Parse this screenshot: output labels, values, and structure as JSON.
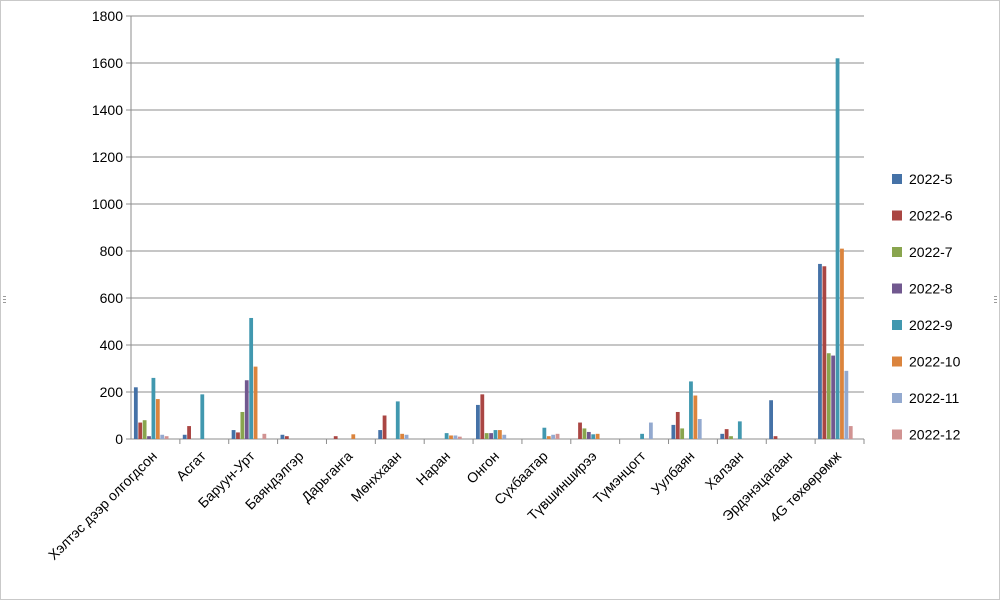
{
  "chart_data": {
    "type": "bar",
    "categories": [
      "Хэлтэс дээр олгогдсон",
      "Асгат",
      "Баруун-Урт",
      "Баяндэлгэр",
      "Дарьганга",
      "Мөнххаан",
      "Наран",
      "Онгон",
      "Сүхбаатар",
      "Түвшинширээ",
      "Түмэнцогт",
      "Уулбаян",
      "Халзан",
      "Эрдэнэцагаан",
      "4G төхөөрөмж"
    ],
    "series": [
      {
        "name": "2022-5",
        "color": "#4572a7",
        "values": [
          220,
          18,
          38,
          18,
          0,
          38,
          0,
          145,
          0,
          0,
          0,
          60,
          22,
          165,
          745
        ]
      },
      {
        "name": "2022-6",
        "color": "#aa4643",
        "values": [
          70,
          55,
          28,
          12,
          12,
          100,
          0,
          190,
          0,
          70,
          0,
          115,
          42,
          12,
          735
        ]
      },
      {
        "name": "2022-7",
        "color": "#89a54e",
        "values": [
          80,
          0,
          115,
          0,
          0,
          0,
          0,
          25,
          0,
          45,
          0,
          45,
          12,
          0,
          365
        ]
      },
      {
        "name": "2022-8",
        "color": "#71588f",
        "values": [
          12,
          0,
          250,
          0,
          0,
          0,
          0,
          25,
          0,
          30,
          0,
          0,
          0,
          0,
          355
        ]
      },
      {
        "name": "2022-9",
        "color": "#4198af",
        "values": [
          260,
          190,
          515,
          0,
          0,
          160,
          25,
          38,
          48,
          20,
          22,
          245,
          75,
          0,
          1620
        ]
      },
      {
        "name": "2022-10",
        "color": "#db843d",
        "values": [
          170,
          0,
          308,
          0,
          20,
          22,
          15,
          38,
          12,
          22,
          0,
          185,
          0,
          0,
          810
        ]
      },
      {
        "name": "2022-11",
        "color": "#93a9cf",
        "values": [
          18,
          0,
          0,
          0,
          0,
          18,
          15,
          18,
          18,
          0,
          70,
          85,
          0,
          0,
          290
        ]
      },
      {
        "name": "2022-12",
        "color": "#d19392",
        "values": [
          12,
          0,
          22,
          0,
          0,
          0,
          10,
          0,
          22,
          0,
          0,
          0,
          0,
          0,
          55
        ]
      }
    ],
    "title": "",
    "xlabel": "",
    "ylabel": "",
    "ylim": [
      0,
      1800
    ],
    "yticks": [
      "0",
      "200",
      "400",
      "600",
      "800",
      "1000",
      "1200",
      "1400",
      "1600",
      "1800"
    ],
    "grid": "horizontal",
    "legend": "right"
  }
}
